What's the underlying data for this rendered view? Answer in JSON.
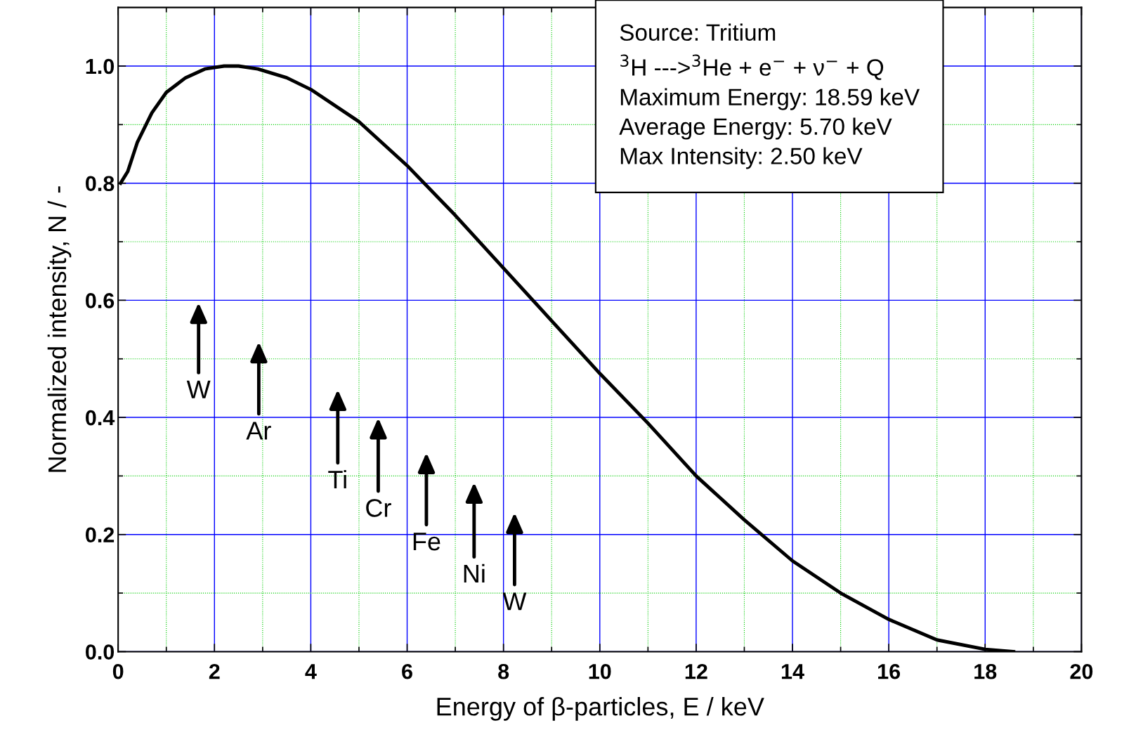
{
  "chart_data": {
    "type": "line",
    "xlabel": "Energy of β-particles, E / keV",
    "ylabel": "Normalized intensity, N / -",
    "x": [
      0.05,
      0.2,
      0.4,
      0.7,
      1.0,
      1.4,
      1.8,
      2.2,
      2.5,
      2.9,
      3.5,
      4.0,
      5.0,
      6.0,
      7.0,
      8.0,
      9.0,
      10.0,
      11.0,
      12.0,
      13.0,
      14.0,
      15.0,
      16.0,
      17.0,
      18.0,
      18.59
    ],
    "series": [
      {
        "color": "#000000",
        "values": [
          0.8,
          0.82,
          0.87,
          0.92,
          0.955,
          0.98,
          0.995,
          1.0,
          1.0,
          0.995,
          0.98,
          0.96,
          0.905,
          0.83,
          0.745,
          0.655,
          0.565,
          0.475,
          0.39,
          0.3,
          0.225,
          0.155,
          0.1,
          0.055,
          0.02,
          0.004,
          0.0
        ]
      }
    ],
    "xlim": [
      0,
      20
    ],
    "ylim": [
      0,
      1.1
    ],
    "xticks": [
      0,
      {
        "value": 1,
        "label": null
      },
      2,
      {
        "value": 3,
        "label": null
      },
      4,
      {
        "value": 5,
        "label": null
      },
      6,
      {
        "value": 7,
        "label": null
      },
      8,
      {
        "value": 9,
        "label": null
      },
      10,
      {
        "value": 11,
        "label": null
      },
      12,
      {
        "value": 13,
        "label": null
      },
      14,
      {
        "value": 15,
        "label": null
      },
      16,
      {
        "value": 17,
        "label": null
      },
      18,
      {
        "value": 19,
        "label": null
      },
      20
    ],
    "yticks": [
      {
        "value": 0,
        "label": "0.0"
      },
      {
        "value": 0.1,
        "label": null
      },
      {
        "value": 0.2,
        "label": "0.2"
      },
      {
        "value": 0.3,
        "label": null
      },
      {
        "value": 0.4,
        "label": "0.4"
      },
      {
        "value": 0.5,
        "label": null
      },
      {
        "value": 0.6,
        "label": "0.6"
      },
      {
        "value": 0.7,
        "label": null
      },
      {
        "value": 0.8,
        "label": "0.8"
      },
      {
        "value": 0.9,
        "label": null
      },
      {
        "value": 1.0,
        "label": "1.0"
      }
    ],
    "grid": true,
    "marker": "none",
    "line_style": "solid",
    "annotations": [
      "Source: Tritium",
      "$^{3}$H --->$^{3}$He + e$^{−}$ + ν$^{−}$ + Q",
      "Maximum Energy: 18.59 keV",
      "Average Energy: 5.70 keV",
      "Max Intensity: 2.50 keV",
      "W",
      "Ar",
      "Ti",
      "Cr",
      "Fe",
      "Ni",
      "W"
    ]
  }
}
